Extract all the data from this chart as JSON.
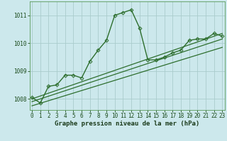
{
  "title": "Graphe pression niveau de la mer (hPa)",
  "bg_color": "#cce8ec",
  "grid_color": "#aacccc",
  "line_color": "#2d6e2d",
  "x_ticks": [
    0,
    1,
    2,
    3,
    4,
    5,
    6,
    7,
    8,
    9,
    10,
    11,
    12,
    13,
    14,
    15,
    16,
    17,
    18,
    19,
    20,
    21,
    22,
    23
  ],
  "y_ticks": [
    1008,
    1009,
    1010,
    1011
  ],
  "ylim": [
    1007.6,
    1011.5
  ],
  "xlim": [
    -0.3,
    23.3
  ],
  "series": [
    {
      "x": [
        0,
        1,
        2,
        3,
        4,
        5,
        6,
        7,
        8,
        9,
        10,
        11,
        12,
        13,
        14,
        15,
        16,
        17,
        18,
        19,
        20,
        21,
        22,
        23
      ],
      "y": [
        1008.05,
        1007.85,
        1008.45,
        1008.5,
        1008.85,
        1008.85,
        1008.75,
        1009.35,
        1009.75,
        1010.1,
        1011.0,
        1011.1,
        1011.2,
        1010.55,
        1009.4,
        1009.4,
        1009.5,
        1009.65,
        1009.75,
        1010.1,
        1010.15,
        1010.15,
        1010.35,
        1010.25
      ],
      "marker": "D",
      "markersize": 2.5,
      "linewidth": 1.0,
      "zorder": 5
    },
    {
      "x": [
        0,
        23
      ],
      "y": [
        1008.0,
        1010.35
      ],
      "marker": null,
      "markersize": 0,
      "linewidth": 0.9,
      "zorder": 3
    },
    {
      "x": [
        0,
        23
      ],
      "y": [
        1007.9,
        1010.15
      ],
      "marker": null,
      "markersize": 0,
      "linewidth": 0.9,
      "zorder": 3
    },
    {
      "x": [
        0,
        23
      ],
      "y": [
        1007.75,
        1009.85
      ],
      "marker": null,
      "markersize": 0,
      "linewidth": 0.9,
      "zorder": 3
    }
  ],
  "tick_fontsize": 5.5,
  "title_fontsize": 6.5
}
